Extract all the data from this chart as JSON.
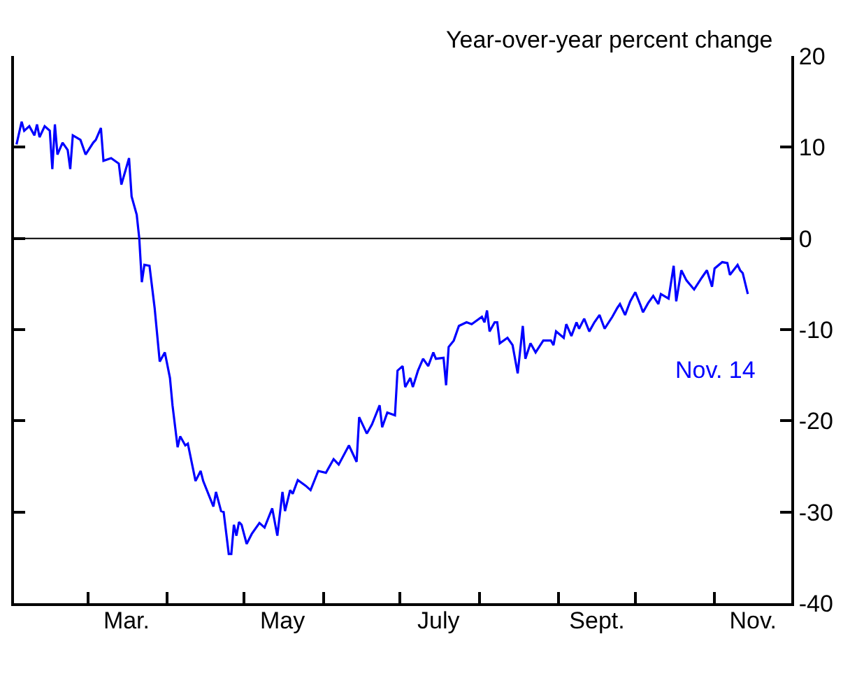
{
  "chart_data": {
    "type": "line",
    "ylabel": "Year-over-year percent change",
    "annotations": [
      "Nov. 14"
    ],
    "x": [
      "--02-02",
      "--02-04",
      "--02-05",
      "--02-07",
      "--02-09",
      "--02-10",
      "--02-11",
      "--02-13",
      "--02-15",
      "--02-16",
      "--02-17",
      "--02-18",
      "--02-20",
      "--02-22",
      "--02-23",
      "--02-24",
      "--02-27",
      "--02-29",
      "--03-03",
      "--03-04",
      "--03-06",
      "--03-07",
      "--03-10",
      "--03-13",
      "--03-14",
      "--03-17",
      "--03-18",
      "--03-20",
      "--03-21",
      "--03-22",
      "--03-23",
      "--03-25",
      "--03-27",
      "--03-29",
      "--03-31",
      "--04-02",
      "--04-03",
      "--04-05",
      "--04-06",
      "--04-08",
      "--04-09",
      "--04-12",
      "--04-14",
      "--04-15",
      "--04-17",
      "--04-19",
      "--04-20",
      "--04-22",
      "--04-23",
      "--04-25",
      "--04-26",
      "--04-27",
      "--04-28",
      "--04-29",
      "--04-30",
      "--05-02",
      "--05-04",
      "--05-07",
      "--05-09",
      "--05-12",
      "--05-14",
      "--05-16",
      "--05-17",
      "--05-19",
      "--05-20",
      "--05-22",
      "--05-25",
      "--05-27",
      "--05-30",
      "--06-02",
      "--06-05",
      "--06-07",
      "--06-11",
      "--06-14",
      "--06-15",
      "--06-18",
      "--06-20",
      "--06-23",
      "--06-24",
      "--06-26",
      "--06-29",
      "--06-30",
      "--07-02",
      "--07-03",
      "--07-05",
      "--07-06",
      "--07-08",
      "--07-10",
      "--07-12",
      "--07-14",
      "--07-15",
      "--07-18",
      "--07-19",
      "--07-20",
      "--07-22",
      "--07-24",
      "--07-27",
      "--07-29",
      "--08-02",
      "--08-03",
      "--08-04",
      "--08-05",
      "--08-07",
      "--08-08",
      "--08-09",
      "--08-12",
      "--08-14",
      "--08-16",
      "--08-18",
      "--08-19",
      "--08-21",
      "--08-23",
      "--08-26",
      "--08-29",
      "--08-30",
      "--08-31",
      "--09-03",
      "--09-04",
      "--09-06",
      "--09-08",
      "--09-09",
      "--09-11",
      "--09-13",
      "--09-15",
      "--09-17",
      "--09-19",
      "--09-22",
      "--09-24",
      "--09-25",
      "--09-27",
      "--09-29",
      "--10-01",
      "--10-03",
      "--10-04",
      "--10-06",
      "--10-08",
      "--10-10",
      "--10-11",
      "--10-14",
      "--10-16",
      "--10-17",
      "--10-19",
      "--10-21",
      "--10-24",
      "--10-27",
      "--10-29",
      "--10-31",
      "--11-01",
      "--11-04",
      "--11-06",
      "--11-07",
      "--11-10",
      "--11-11",
      "--11-12",
      "--11-14"
    ],
    "series": [
      {
        "color": "#0000ff",
        "values": [
          10.3,
          12.8,
          11.8,
          12.3,
          11.3,
          12.5,
          11.1,
          12.3,
          11.8,
          7.6,
          12.5,
          9.2,
          10.5,
          9.7,
          7.6,
          11.3,
          10.8,
          9.2,
          10.5,
          10.8,
          12.1,
          8.5,
          8.8,
          8.2,
          5.9,
          8.8,
          4.6,
          2.6,
          0,
          -4.8,
          -2.9,
          -3.0,
          -7.6,
          -13.5,
          -12.5,
          -15.3,
          -18.3,
          -22.9,
          -21.7,
          -22.7,
          -22.5,
          -26.6,
          -25.5,
          -26.6,
          -28,
          -29.4,
          -27.8,
          -29.9,
          -30.0,
          -34.6,
          -34.6,
          -31.4,
          -32.6,
          -31.1,
          -31.4,
          -33.5,
          -32.4,
          -31.2,
          -31.7,
          -29.6,
          -32.6,
          -27.8,
          -29.9,
          -27.6,
          -28,
          -26.5,
          -27.1,
          -27.6,
          -25.5,
          -25.7,
          -24.2,
          -24.8,
          -22.7,
          -24.5,
          -19.6,
          -21.4,
          -20.4,
          -18.3,
          -20.7,
          -19.1,
          -19.4,
          -14.5,
          -14.0,
          -16.3,
          -15.3,
          -16.3,
          -14.5,
          -13.2,
          -14.0,
          -12.5,
          -13.2,
          -13.1,
          -16.1,
          -11.9,
          -11.2,
          -9.6,
          -9.2,
          -9.4,
          -8.6,
          -9.2,
          -7.9,
          -10.2,
          -9.2,
          -9.2,
          -11.5,
          -10.9,
          -11.7,
          -14.8,
          -9.6,
          -13.2,
          -11.5,
          -12.5,
          -11.2,
          -11.2,
          -11.7,
          -10.2,
          -10.9,
          -9.4,
          -10.7,
          -9.2,
          -9.9,
          -8.8,
          -10.2,
          -9.2,
          -8.4,
          -9.9,
          -8.6,
          -7.6,
          -7.2,
          -8.4,
          -6.9,
          -5.9,
          -7.3,
          -8.1,
          -7.1,
          -6.3,
          -7.2,
          -6.1,
          -6.6,
          -3.0,
          -6.9,
          -3.5,
          -4.6,
          -5.6,
          -4.3,
          -3.5,
          -5.3,
          -3.3,
          -2.6,
          -2.7,
          -4.0,
          -2.9,
          -3.5,
          -3.8,
          -6.1
        ]
      }
    ],
    "xlim": [
      "--02-01",
      "--12-01"
    ],
    "xticks": [
      {
        "value": "--03-01",
        "label": null
      },
      {
        "value": "--03-16",
        "label": "Mar."
      },
      {
        "value": "--04-01",
        "label": null
      },
      {
        "value": "--05-01",
        "label": null
      },
      {
        "value": "--05-16",
        "label": "May"
      },
      {
        "value": "--06-01",
        "label": null
      },
      {
        "value": "--07-01",
        "label": null
      },
      {
        "value": "--07-16",
        "label": "July"
      },
      {
        "value": "--08-01",
        "label": null
      },
      {
        "value": "--09-01",
        "label": null
      },
      {
        "value": "--09-16",
        "label": "Sept."
      },
      {
        "value": "--10-01",
        "label": null
      },
      {
        "value": "--11-01",
        "label": null
      },
      {
        "value": "--11-16",
        "label": "Nov."
      }
    ],
    "ylim": [
      -40,
      20
    ],
    "yticks": [
      -40,
      -30,
      -20,
      -10,
      0,
      10,
      20
    ],
    "ref_lines": [
      {
        "axis": "y",
        "value": 0,
        "label": null,
        "color": "#000000"
      }
    ],
    "grid": false,
    "marker": "none",
    "line_style": "solid"
  }
}
